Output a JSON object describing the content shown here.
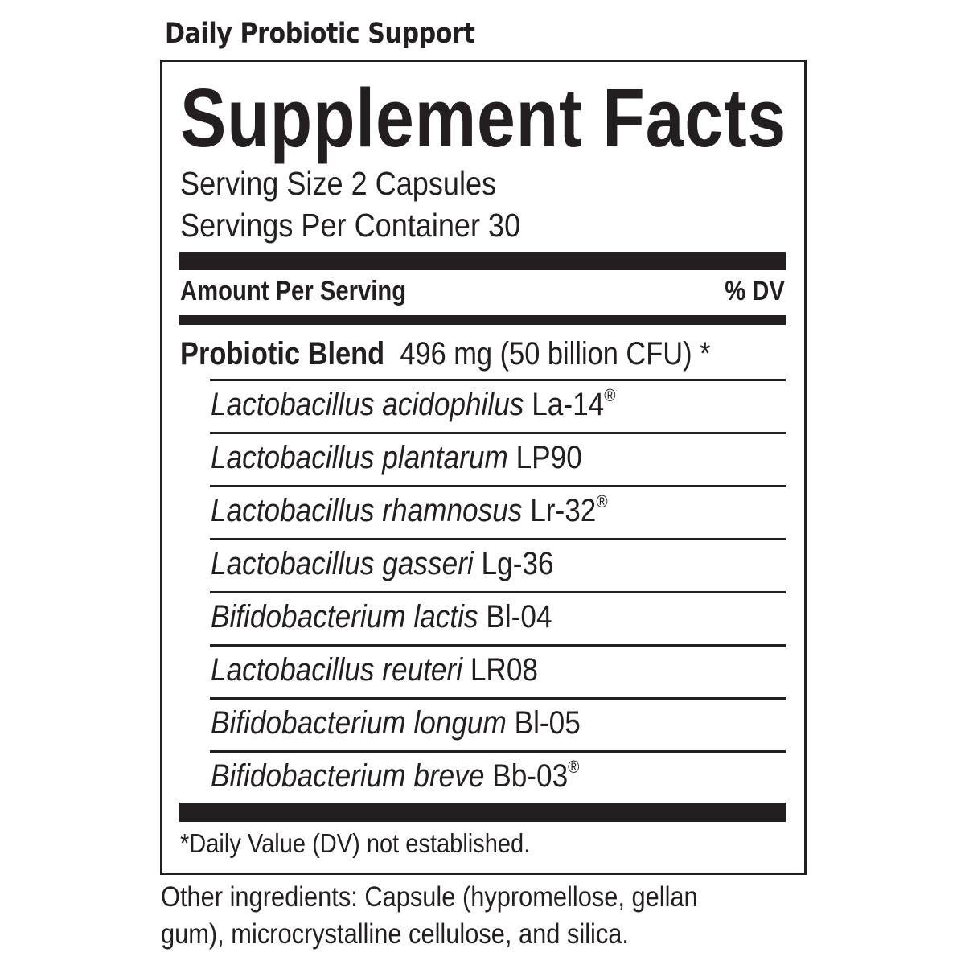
{
  "product_name": "Daily Probiotic Support",
  "panel": {
    "title": "Supplement Facts",
    "serving_size": "Serving Size 2 Capsules",
    "servings_per_container": "Servings Per Container 30",
    "amount_header": "Amount Per Serving",
    "dv_header": "% DV",
    "blend": {
      "name": "Probiotic Blend",
      "amount": "496 mg (50 billion CFU) *"
    },
    "strains": [
      {
        "species": "Lactobacillus acidophilus",
        "strain": "La-14",
        "mark": "®"
      },
      {
        "species": "Lactobacillus plantarum",
        "strain": "LP90",
        "mark": ""
      },
      {
        "species": "Lactobacillus rhamnosus",
        "strain": "Lr-32",
        "mark": "®"
      },
      {
        "species": "Lactobacillus gasseri",
        "strain": "Lg-36",
        "mark": ""
      },
      {
        "species": "Bifidobacterium lactis",
        "strain": "Bl-04",
        "mark": ""
      },
      {
        "species": "Lactobacillus reuteri",
        "strain": "LR08",
        "mark": ""
      },
      {
        "species": "Bifidobacterium longum",
        "strain": "Bl-05",
        "mark": ""
      },
      {
        "species": "Bifidobacterium breve",
        "strain": "Bb-03",
        "mark": "®"
      }
    ],
    "footnote": "*Daily Value (DV) not established."
  },
  "other_ingredients": {
    "line1": "Other ingredients: Capsule (hypromellose, gellan",
    "line2": "gum), microcrystalline cellulose, and silica."
  }
}
